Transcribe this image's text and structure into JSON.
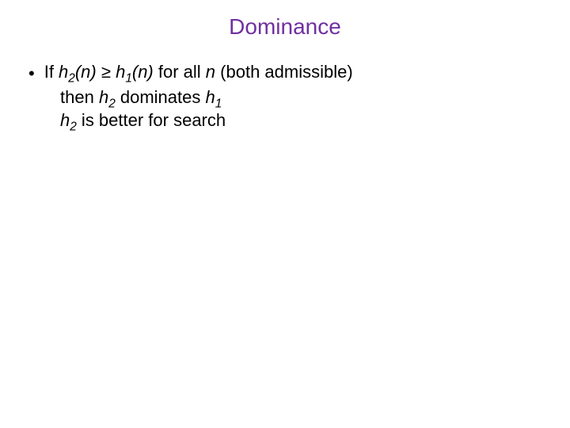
{
  "title": {
    "text": "Dominance",
    "color": "#7030a0",
    "fontsize": 28
  },
  "body": {
    "fontsize": 22,
    "text_color": "#000000"
  },
  "line1": {
    "t1": "If ",
    "h2": "h",
    "sub2": "2",
    "n1": "(n)",
    "ge": " ≥ ",
    "h1": "h",
    "sub1": "1",
    "n2": "(n)",
    "t2": " for all ",
    "nitalic": "n",
    "t3": " (both admissible)"
  },
  "line2": {
    "t1": "then ",
    "h2": "h",
    "sub2": "2",
    "t2": " dominates ",
    "h1": "h",
    "sub1": "1"
  },
  "line3": {
    "h2": "h",
    "sub2": "2",
    "t1": " is better for search"
  },
  "background_color": "#ffffff"
}
